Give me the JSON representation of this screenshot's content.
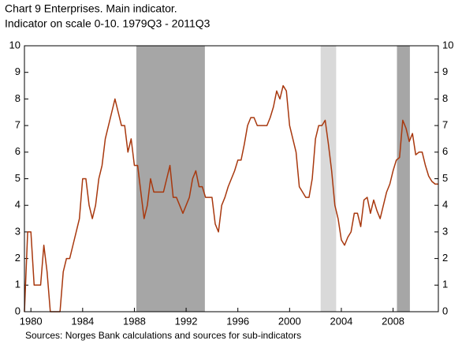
{
  "chart_data": {
    "type": "line",
    "title": "Chart 9 Enterprises. Main indicator.",
    "subtitle": "Indicator on scale 0-10. 1979Q3 - 2011Q3",
    "source": "Sources: Norges Bank calculations and sources for sub-indicators",
    "xlim": [
      1979.5,
      2011.5
    ],
    "xticks": [
      1980,
      1984,
      1988,
      1992,
      1996,
      2000,
      2004,
      2008
    ],
    "ylim": [
      0,
      10
    ],
    "yticks": [
      0,
      1,
      2,
      3,
      4,
      5,
      6,
      7,
      8,
      9,
      10
    ],
    "y2lim": [
      0,
      10
    ],
    "y2ticks": [
      0,
      1,
      2,
      3,
      4,
      5,
      6,
      7,
      8,
      9,
      10
    ],
    "shaded": [
      {
        "start": 1988.15,
        "end": 1993.45,
        "color": "#a6a6a6"
      },
      {
        "start": 2002.4,
        "end": 2003.6,
        "color": "#d9d9d9"
      },
      {
        "start": 2008.3,
        "end": 2009.3,
        "color": "#a6a6a6"
      }
    ],
    "x": [
      1979.5,
      1979.75,
      1980,
      1980.25,
      1980.5,
      1980.75,
      1981,
      1981.25,
      1981.5,
      1981.75,
      1982,
      1982.25,
      1982.5,
      1982.75,
      1983,
      1983.25,
      1983.5,
      1983.75,
      1984,
      1984.25,
      1984.5,
      1984.75,
      1985,
      1985.25,
      1985.5,
      1985.75,
      1986,
      1986.25,
      1986.5,
      1986.75,
      1987,
      1987.25,
      1987.5,
      1987.75,
      1988,
      1988.25,
      1988.5,
      1988.75,
      1989,
      1989.25,
      1989.5,
      1989.75,
      1990,
      1990.25,
      1990.5,
      1990.75,
      1991,
      1991.25,
      1991.5,
      1991.75,
      1992,
      1992.25,
      1992.5,
      1992.75,
      1993,
      1993.25,
      1993.5,
      1993.75,
      1994,
      1994.25,
      1994.5,
      1994.75,
      1995,
      1995.25,
      1995.5,
      1995.75,
      1996,
      1996.25,
      1996.5,
      1996.75,
      1997,
      1997.25,
      1997.5,
      1997.75,
      1998,
      1998.25,
      1998.5,
      1998.75,
      1999,
      1999.25,
      1999.5,
      1999.75,
      2000,
      2000.25,
      2000.5,
      2000.75,
      2001,
      2001.25,
      2001.5,
      2001.75,
      2002,
      2002.25,
      2002.5,
      2002.75,
      2003,
      2003.25,
      2003.5,
      2003.75,
      2004,
      2004.25,
      2004.5,
      2004.75,
      2005,
      2005.25,
      2005.5,
      2005.75,
      2006,
      2006.25,
      2006.5,
      2006.75,
      2007,
      2007.25,
      2007.5,
      2007.75,
      2008,
      2008.25,
      2008.5,
      2008.75,
      2009,
      2009.25,
      2009.5,
      2009.75,
      2010,
      2010.25,
      2010.5,
      2010.75,
      2011,
      2011.25,
      2011.5
    ],
    "series": [
      {
        "color": "#a8380e",
        "values": [
          0,
          3,
          3,
          1,
          1,
          1,
          2.5,
          1.5,
          0,
          0,
          0,
          0,
          1.5,
          2,
          2,
          2.5,
          3,
          3.5,
          5,
          5,
          4,
          3.5,
          4,
          5,
          5.5,
          6.5,
          7,
          7.5,
          8,
          7.5,
          7,
          7,
          6,
          6.5,
          5.5,
          5.5,
          4.5,
          3.5,
          4,
          5,
          4.5,
          4.5,
          4.5,
          4.5,
          5,
          5.5,
          4.3,
          4.3,
          4,
          3.7,
          4,
          4.3,
          5,
          5.3,
          4.7,
          4.7,
          4.3,
          4.3,
          4.3,
          3.3,
          3,
          4,
          4.3,
          4.7,
          5,
          5.3,
          5.7,
          5.7,
          6.3,
          7,
          7.3,
          7.3,
          7,
          7,
          7,
          7,
          7.3,
          7.7,
          8.3,
          8,
          8.5,
          8.3,
          7,
          6.5,
          6,
          4.7,
          4.5,
          4.3,
          4.3,
          5,
          6.5,
          7,
          7,
          7.2,
          6.3,
          5.3,
          4,
          3.5,
          2.7,
          2.5,
          2.8,
          3,
          3.7,
          3.7,
          3.2,
          4.2,
          4.3,
          3.7,
          4.2,
          3.8,
          3.5,
          4,
          4.5,
          4.8,
          5.3,
          5.7,
          5.8,
          7.2,
          6.9,
          6.4,
          6.7,
          5.9,
          6,
          6,
          5.5,
          5.1,
          4.9,
          4.8,
          4.8
        ]
      }
    ]
  }
}
